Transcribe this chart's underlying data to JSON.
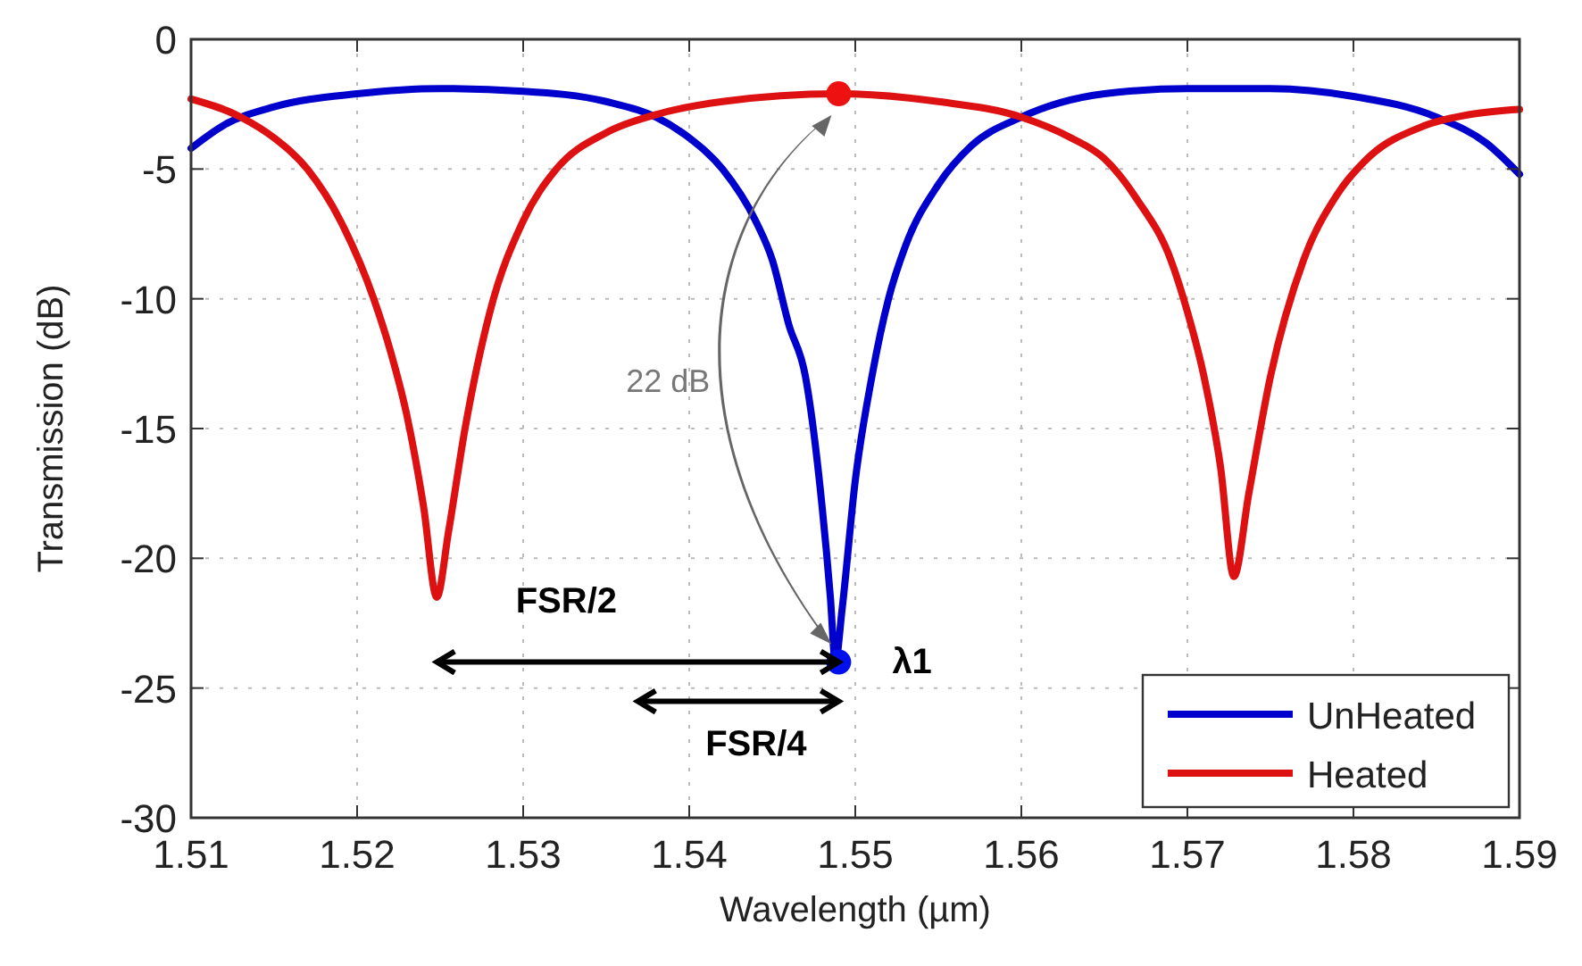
{
  "chart_data": {
    "type": "line",
    "xlabel": "Wavelength (µm)",
    "ylabel": "Transmission (dB)",
    "xlim": [
      1.51,
      1.59
    ],
    "xticks": [
      1.51,
      1.52,
      1.53,
      1.54,
      1.55,
      1.56,
      1.57,
      1.58,
      1.59
    ],
    "ylim": [
      -30,
      0
    ],
    "yticks": [
      -30,
      -25,
      -20,
      -15,
      -10,
      -5,
      0
    ],
    "grid": true,
    "legend": "bottom right",
    "line_style": "solid",
    "series": [
      {
        "name": "UnHeated",
        "color": "#0000cc",
        "x": [
          1.51,
          1.512,
          1.515,
          1.52,
          1.525,
          1.53,
          1.535,
          1.538,
          1.54,
          1.542,
          1.544,
          1.545,
          1.546,
          1.547,
          1.548,
          1.5485,
          1.5488,
          1.5492,
          1.55,
          1.551,
          1.552,
          1.553,
          1.555,
          1.557,
          1.56,
          1.565,
          1.57,
          1.575,
          1.58,
          1.585,
          1.588,
          1.59
        ],
        "values": [
          -4.2,
          -3.3,
          -2.6,
          -2.1,
          -1.9,
          -2.0,
          -2.4,
          -3.0,
          -3.8,
          -5.0,
          -7.0,
          -8.5,
          -11,
          -13,
          -18,
          -21.5,
          -24,
          -22,
          -17,
          -13,
          -10,
          -8,
          -5.6,
          -4.1,
          -3.0,
          -2.1,
          -1.9,
          -1.9,
          -2.2,
          -3.0,
          -4.0,
          -5.2
        ]
      },
      {
        "name": "Heated",
        "color": "#dd1111",
        "x": [
          1.51,
          1.513,
          1.515,
          1.517,
          1.519,
          1.521,
          1.522,
          1.523,
          1.524,
          1.5248,
          1.5255,
          1.5265,
          1.528,
          1.53,
          1.532,
          1.535,
          1.538,
          1.542,
          1.549,
          1.555,
          1.56,
          1.563,
          1.565,
          1.567,
          1.569,
          1.57,
          1.571,
          1.572,
          1.5728,
          1.5737,
          1.575,
          1.577,
          1.579,
          1.581,
          1.584,
          1.587,
          1.59
        ],
        "values": [
          -2.3,
          -3.0,
          -3.8,
          -5.0,
          -7.0,
          -10,
          -12,
          -14.5,
          -18,
          -21.5,
          -19,
          -15,
          -10.5,
          -7,
          -5,
          -3.6,
          -2.9,
          -2.4,
          -2.1,
          -2.4,
          -3.0,
          -3.8,
          -4.6,
          -6.2,
          -8.5,
          -10.5,
          -13,
          -16.5,
          -20.7,
          -17.5,
          -13,
          -8.5,
          -6,
          -4.5,
          -3.4,
          -2.9,
          -2.7
        ]
      },
      {
        "type": "scatter",
        "marker": "circle",
        "color": "#ee1111",
        "x": [
          1.549
        ],
        "values": [
          -2.1
        ]
      },
      {
        "type": "scatter",
        "marker": "circle",
        "color": "#0011ee",
        "x": [
          1.549
        ],
        "values": [
          -24
        ]
      }
    ],
    "annotations": [
      "22 dB",
      "FSR/2",
      "FSR/4",
      {
        "text": "λ1",
        "x": 1.549,
        "y": -24
      }
    ]
  }
}
